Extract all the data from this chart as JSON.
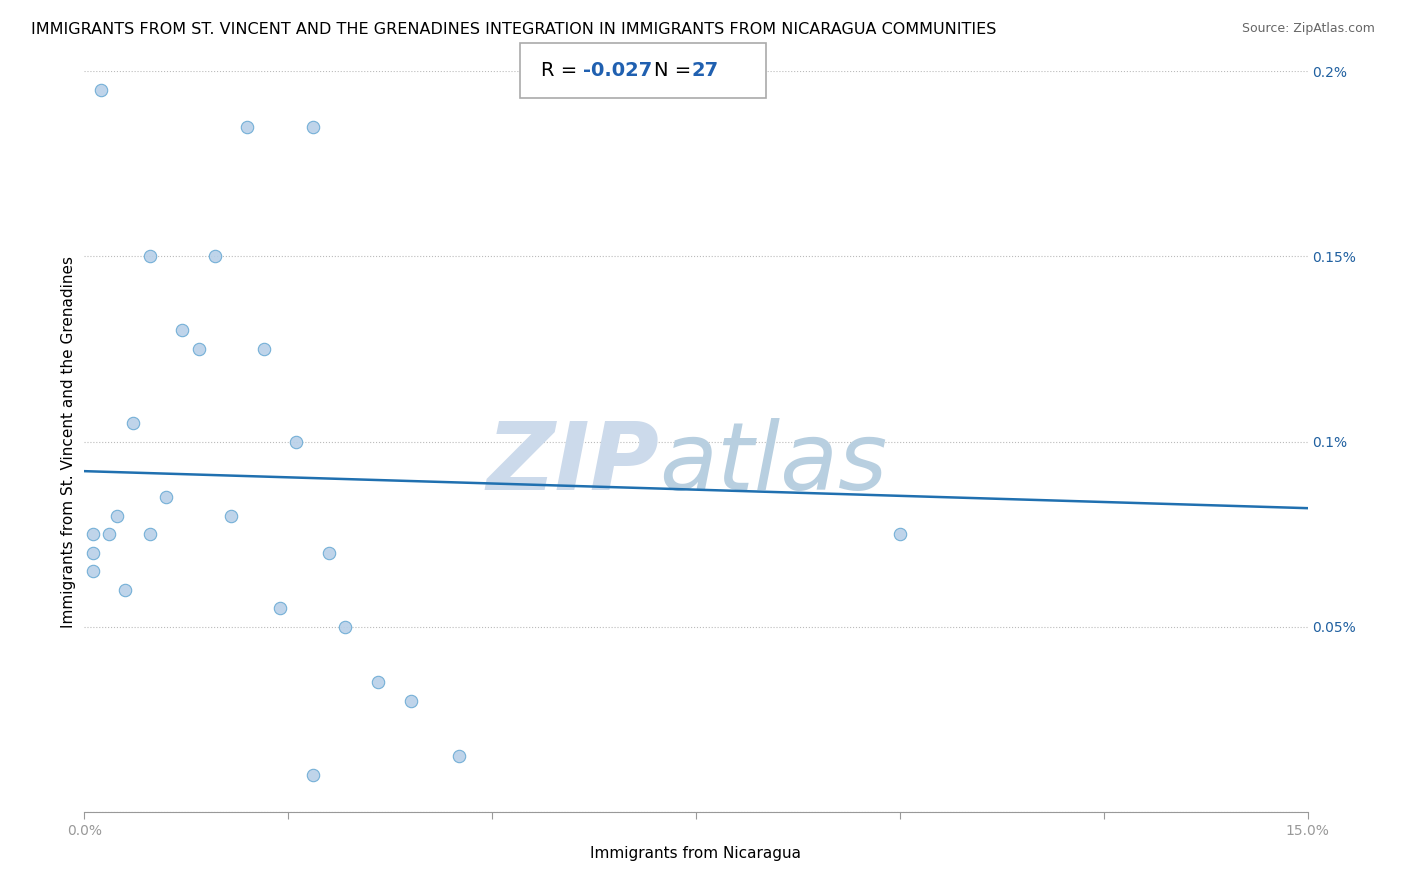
{
  "title": "IMMIGRANTS FROM ST. VINCENT AND THE GRENADINES INTEGRATION IN IMMIGRANTS FROM NICARAGUA COMMUNITIES",
  "source": "Source: ZipAtlas.com",
  "xlabel": "Immigrants from Nicaragua",
  "ylabel": "Immigrants from St. Vincent and the Grenadines",
  "R": -0.027,
  "N": 27,
  "xlim": [
    0,
    0.15
  ],
  "ylim": [
    0,
    0.002
  ],
  "xticks": [
    0.0,
    0.025,
    0.05,
    0.075,
    0.1,
    0.125,
    0.15
  ],
  "xtick_labels": [
    "0.0%",
    "",
    "",
    "",
    "",
    "",
    "15.0%"
  ],
  "ytick_labels": [
    "",
    "0.05%",
    "0.1%",
    "0.15%",
    "0.2%"
  ],
  "yticks": [
    0.0,
    0.0005,
    0.001,
    0.0015,
    0.002
  ],
  "scatter_x": [
    0.001,
    0.001,
    0.001,
    0.002,
    0.003,
    0.004,
    0.005,
    0.006,
    0.008,
    0.008,
    0.01,
    0.012,
    0.014,
    0.016,
    0.018,
    0.02,
    0.022,
    0.024,
    0.026,
    0.028,
    0.03,
    0.032,
    0.036,
    0.04,
    0.046,
    0.1,
    0.028
  ],
  "scatter_y": [
    0.00075,
    0.0007,
    0.00065,
    0.00195,
    0.00075,
    0.0008,
    0.0006,
    0.00105,
    0.0015,
    0.00075,
    0.00085,
    0.0013,
    0.00125,
    0.0015,
    0.0008,
    0.00185,
    0.00125,
    0.00055,
    0.001,
    0.00185,
    0.0007,
    0.0005,
    0.00035,
    0.0003,
    0.00015,
    0.00075,
    0.0001
  ],
  "trend_x": [
    0.0,
    0.15
  ],
  "trend_y_start": 0.00092,
  "trend_y_end": 0.00082,
  "dot_color": "#b8d0e8",
  "dot_edge_color": "#6aaad4",
  "trend_color": "#2070b0",
  "watermark_zip": "ZIP",
  "watermark_atlas": "atlas",
  "watermark_color": "#ccdaeb",
  "background_color": "#ffffff",
  "title_fontsize": 11.5,
  "axis_label_fontsize": 11,
  "tick_fontsize": 10,
  "stat_fontsize": 14,
  "box_border_color": "#aaaaaa"
}
